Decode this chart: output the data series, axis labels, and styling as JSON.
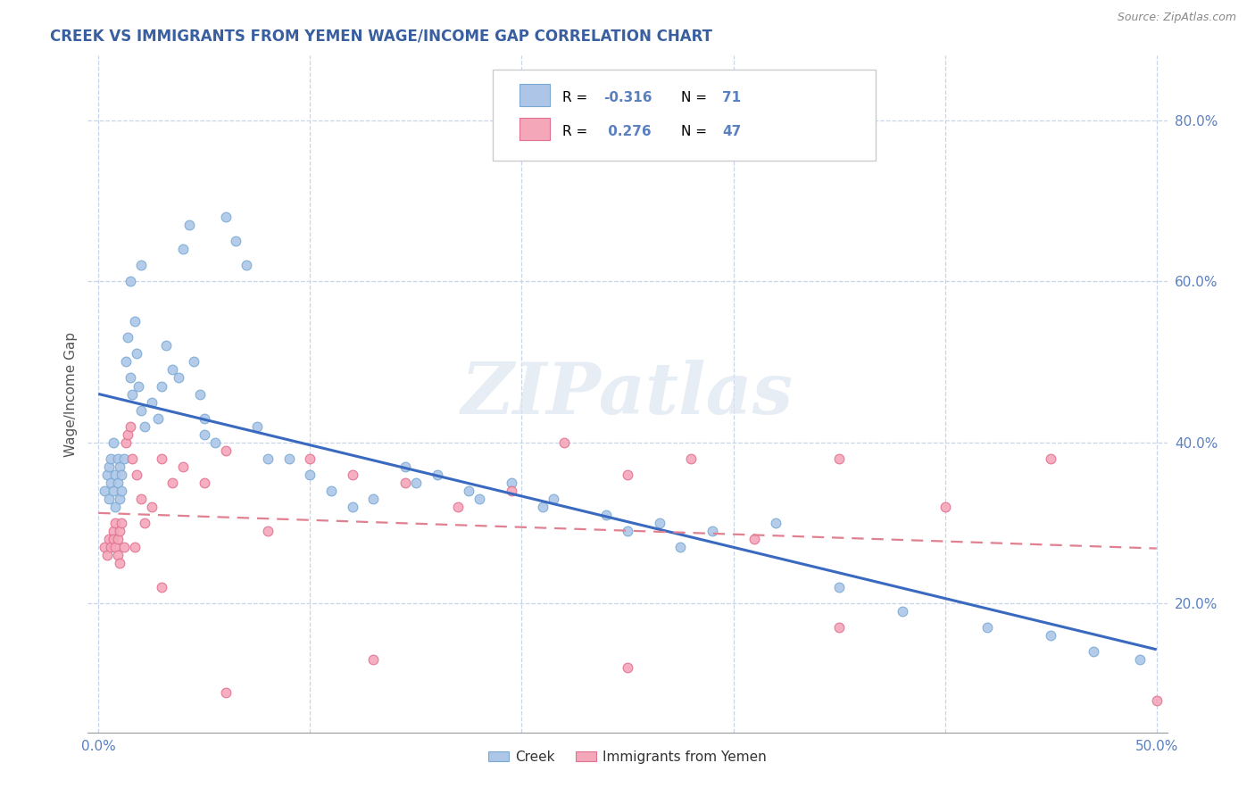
{
  "title": "CREEK VS IMMIGRANTS FROM YEMEN WAGE/INCOME GAP CORRELATION CHART",
  "source": "Source: ZipAtlas.com",
  "ylabel": "Wage/Income Gap",
  "xlim": [
    -0.005,
    0.505
  ],
  "ylim": [
    0.04,
    0.88
  ],
  "xticks": [
    0.0,
    0.1,
    0.2,
    0.3,
    0.4,
    0.5
  ],
  "xticklabels": [
    "0.0%",
    "",
    "",
    "",
    "",
    "50.0%"
  ],
  "yticks": [
    0.2,
    0.4,
    0.6,
    0.8
  ],
  "yticklabels": [
    "20.0%",
    "40.0%",
    "60.0%",
    "80.0%"
  ],
  "creek_color": "#adc6e8",
  "yemen_color": "#f4a7b9",
  "creek_edge_color": "#7aaad4",
  "yemen_edge_color": "#e07090",
  "creek_trend_color": "#3a6abf",
  "yemen_trend_color": "#e08090",
  "background_color": "#ffffff",
  "title_color": "#3a5fa0",
  "watermark_color": "#dce6f0",
  "watermark_alpha": 0.7,
  "tick_color": "#5a80c0",
  "ylabel_color": "#555555",
  "source_color": "#888888",
  "creek_x": [
    0.003,
    0.004,
    0.005,
    0.005,
    0.006,
    0.006,
    0.007,
    0.007,
    0.008,
    0.008,
    0.009,
    0.009,
    0.01,
    0.01,
    0.011,
    0.011,
    0.012,
    0.013,
    0.014,
    0.015,
    0.016,
    0.017,
    0.018,
    0.019,
    0.02,
    0.022,
    0.025,
    0.028,
    0.03,
    0.032,
    0.035,
    0.038,
    0.04,
    0.043,
    0.045,
    0.048,
    0.05,
    0.055,
    0.06,
    0.065,
    0.07,
    0.075,
    0.08,
    0.09,
    0.1,
    0.11,
    0.12,
    0.13,
    0.145,
    0.16,
    0.175,
    0.195,
    0.215,
    0.24,
    0.265,
    0.29,
    0.32,
    0.35,
    0.38,
    0.42,
    0.45,
    0.47,
    0.492,
    0.15,
    0.18,
    0.21,
    0.25,
    0.275,
    0.05,
    0.02,
    0.015
  ],
  "creek_y": [
    0.34,
    0.36,
    0.37,
    0.33,
    0.35,
    0.38,
    0.34,
    0.4,
    0.36,
    0.32,
    0.38,
    0.35,
    0.37,
    0.33,
    0.36,
    0.34,
    0.38,
    0.5,
    0.53,
    0.48,
    0.46,
    0.55,
    0.51,
    0.47,
    0.44,
    0.42,
    0.45,
    0.43,
    0.47,
    0.52,
    0.49,
    0.48,
    0.64,
    0.67,
    0.5,
    0.46,
    0.43,
    0.4,
    0.68,
    0.65,
    0.62,
    0.42,
    0.38,
    0.38,
    0.36,
    0.34,
    0.32,
    0.33,
    0.37,
    0.36,
    0.34,
    0.35,
    0.33,
    0.31,
    0.3,
    0.29,
    0.3,
    0.22,
    0.19,
    0.17,
    0.16,
    0.14,
    0.13,
    0.35,
    0.33,
    0.32,
    0.29,
    0.27,
    0.41,
    0.62,
    0.6
  ],
  "yemen_x": [
    0.003,
    0.004,
    0.005,
    0.006,
    0.007,
    0.007,
    0.008,
    0.008,
    0.009,
    0.009,
    0.01,
    0.01,
    0.011,
    0.012,
    0.013,
    0.014,
    0.015,
    0.016,
    0.017,
    0.018,
    0.02,
    0.022,
    0.025,
    0.03,
    0.035,
    0.04,
    0.05,
    0.06,
    0.08,
    0.1,
    0.12,
    0.145,
    0.17,
    0.195,
    0.22,
    0.25,
    0.28,
    0.31,
    0.35,
    0.4,
    0.45,
    0.5,
    0.03,
    0.06,
    0.13,
    0.25,
    0.35
  ],
  "yemen_y": [
    0.27,
    0.26,
    0.28,
    0.27,
    0.29,
    0.28,
    0.3,
    0.27,
    0.26,
    0.28,
    0.29,
    0.25,
    0.3,
    0.27,
    0.4,
    0.41,
    0.42,
    0.38,
    0.27,
    0.36,
    0.33,
    0.3,
    0.32,
    0.38,
    0.35,
    0.37,
    0.35,
    0.39,
    0.29,
    0.38,
    0.36,
    0.35,
    0.32,
    0.34,
    0.4,
    0.36,
    0.38,
    0.28,
    0.38,
    0.32,
    0.38,
    0.08,
    0.22,
    0.09,
    0.13,
    0.12,
    0.17
  ]
}
